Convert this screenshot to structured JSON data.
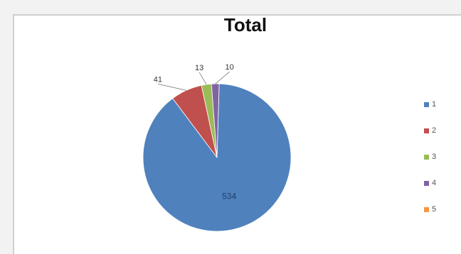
{
  "chart_data": {
    "type": "pie",
    "title": "Total",
    "categories": [
      "1",
      "2",
      "3",
      "4",
      "5"
    ],
    "values": [
      534,
      41,
      13,
      10,
      0
    ],
    "data_labels": [
      "534",
      "41",
      "13",
      "10",
      ""
    ],
    "colors": [
      "#4f81bd",
      "#c0504d",
      "#9bbb59",
      "#8064a2",
      "#f79646"
    ],
    "legend": {
      "position": "right",
      "entries": [
        "1",
        "2",
        "3",
        "4",
        "5"
      ]
    }
  }
}
